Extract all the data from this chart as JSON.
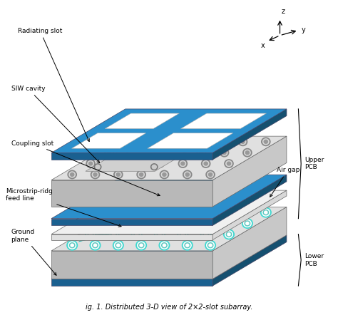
{
  "title": "ig. 1. Distributed 3-D view of 2×2-slot subarray.",
  "bg_color": "#ffffff",
  "blue_color": "#2B8FCC",
  "blue_dark": "#1A6090",
  "blue_darker": "#155070",
  "pcb_top_color": "#E0E0E0",
  "pcb_front_color": "#B8B8B8",
  "pcb_right_color": "#C8C8C8",
  "cyan_color": "#40D8D0",
  "cyan_dark": "#20A8A0",
  "labels": {
    "radiating_slot": "Radiating slot",
    "siw_cavity": "SIW cavity",
    "coupling_slot": "Coupling slot",
    "microstrip": "Microstrip-ridg\nfeed line",
    "ground_plane": "Ground\nplane",
    "air_gap": "Air gap",
    "upper_pcb": "Upper\nPCB",
    "lower_pcb": "Lower\nPCB"
  },
  "fig_width": 4.74,
  "fig_height": 4.42,
  "dpi": 100
}
